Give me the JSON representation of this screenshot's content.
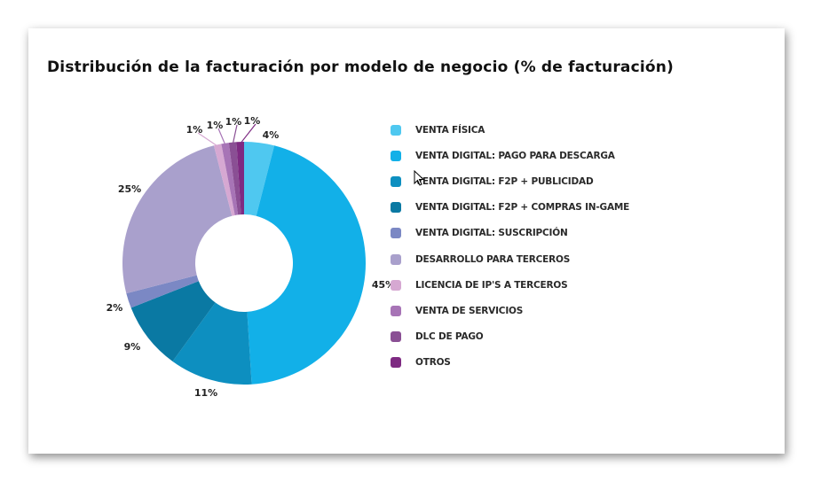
{
  "chart_data": {
    "type": "pie",
    "variant": "donut",
    "title": "Distribución de la facturación por modelo de negocio (% de facturación)",
    "legend_position": "right",
    "categories": [
      "VENTA FÍSICA",
      "VENTA DIGITAL: PAGO PARA DESCARGA",
      "VENTA DIGITAL: F2P + PUBLICIDAD",
      "VENTA DIGITAL: F2P + COMPRAS IN-GAME",
      "VENTA DIGITAL: SUSCRIPCIÓN",
      "DESARROLLO PARA TERCEROS",
      "LICENCIA DE IP'S A TERCEROS",
      "VENTA DE SERVICIOS",
      "DLC DE PAGO",
      "OTROS"
    ],
    "values": [
      4,
      45,
      11,
      9,
      2,
      25,
      1,
      1,
      1,
      1
    ],
    "labels": [
      "4%",
      "45%",
      "11%",
      "9%",
      "2%",
      "25%",
      "1%",
      "1%",
      "1%",
      "1%"
    ],
    "colors": [
      "#4fc8f0",
      "#12b0e8",
      "#0d8fc0",
      "#0a79a3",
      "#7b88c4",
      "#a9a0cc",
      "#d6a8d2",
      "#a774b6",
      "#8a4f94",
      "#7e2a82"
    ]
  }
}
